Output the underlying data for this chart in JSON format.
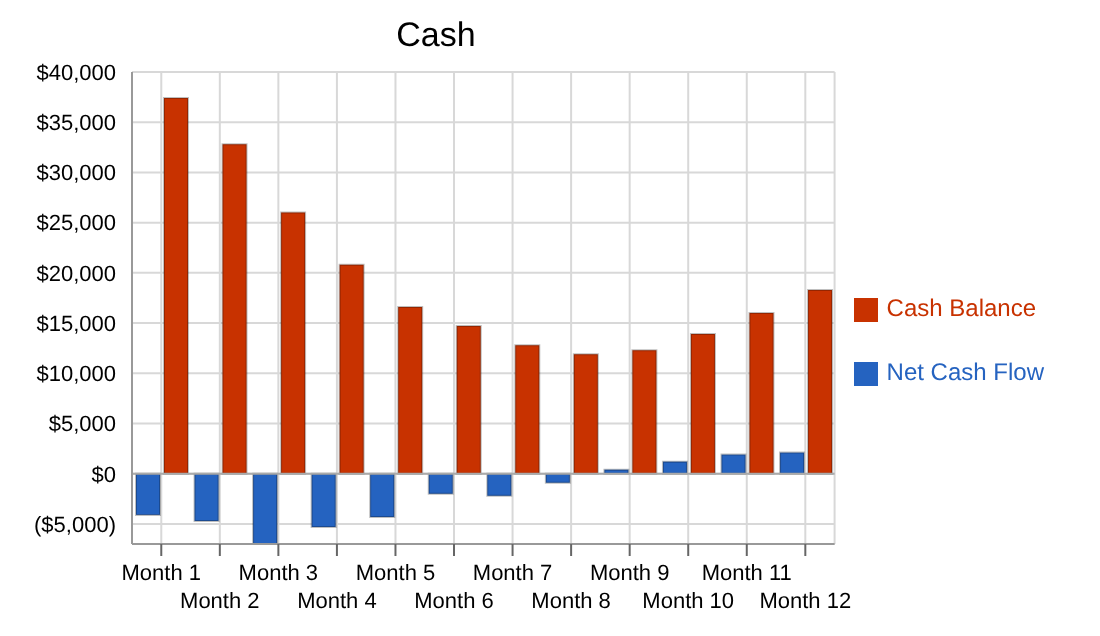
{
  "chart_data": {
    "type": "bar",
    "title": "Cash",
    "categories": [
      "Month 1",
      "Month 2",
      "Month 3",
      "Month 4",
      "Month 5",
      "Month 6",
      "Month 7",
      "Month 8",
      "Month 9",
      "Month 10",
      "Month 11",
      "Month 12"
    ],
    "series": [
      {
        "name": "Net Cash Flow",
        "color": "#2563c0",
        "values": [
          -4100,
          -4700,
          -7000,
          -5300,
          -4300,
          -2000,
          -2200,
          -900,
          400,
          1200,
          1900,
          2100
        ]
      },
      {
        "name": "Cash Balance",
        "color": "#c83200",
        "values": [
          37400,
          32800,
          26000,
          20800,
          16600,
          14700,
          12800,
          11900,
          12300,
          13900,
          16000,
          18300
        ]
      }
    ],
    "ylim": [
      -7000,
      40000
    ],
    "yticks": [
      {
        "value": -5000,
        "label": "($5,000)"
      },
      {
        "value": 0,
        "label": "$0"
      },
      {
        "value": 5000,
        "label": "$5,000"
      },
      {
        "value": 10000,
        "label": "$10,000"
      },
      {
        "value": 15000,
        "label": "$15,000"
      },
      {
        "value": 20000,
        "label": "$20,000"
      },
      {
        "value": 25000,
        "label": "$25,000"
      },
      {
        "value": 30000,
        "label": "$30,000"
      },
      {
        "value": 35000,
        "label": "$35,000"
      },
      {
        "value": 40000,
        "label": "$40,000"
      }
    ],
    "grid": true,
    "legend": "right"
  }
}
